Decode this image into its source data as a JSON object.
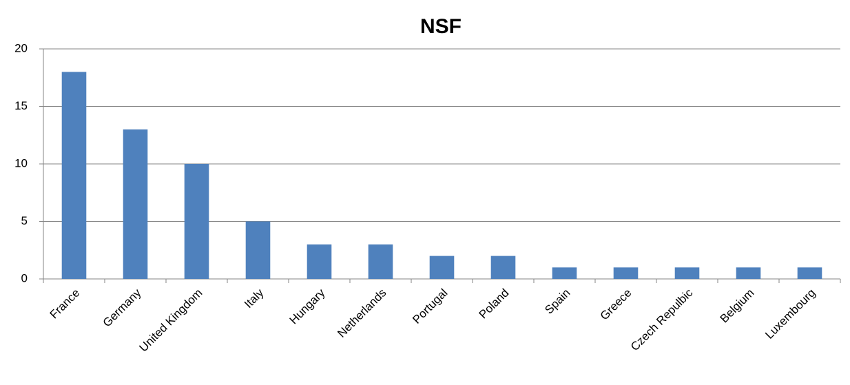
{
  "chart_data": {
    "type": "bar",
    "title": "NSF",
    "categories": [
      "France",
      "Germany",
      "United Kingdom",
      "Italy",
      "Hungary",
      "Netherlands",
      "Portugal",
      "Poland",
      "Spain",
      "Greece",
      "Czech Repulbic",
      "Belgium",
      "Luxembourg"
    ],
    "values": [
      18,
      13,
      10,
      5,
      3,
      3,
      2,
      2,
      1,
      1,
      1,
      1,
      1
    ],
    "color": "#4f81bd",
    "ylim": [
      0,
      20
    ],
    "yticks": [
      0,
      5,
      10,
      15,
      20
    ],
    "grid": true
  }
}
